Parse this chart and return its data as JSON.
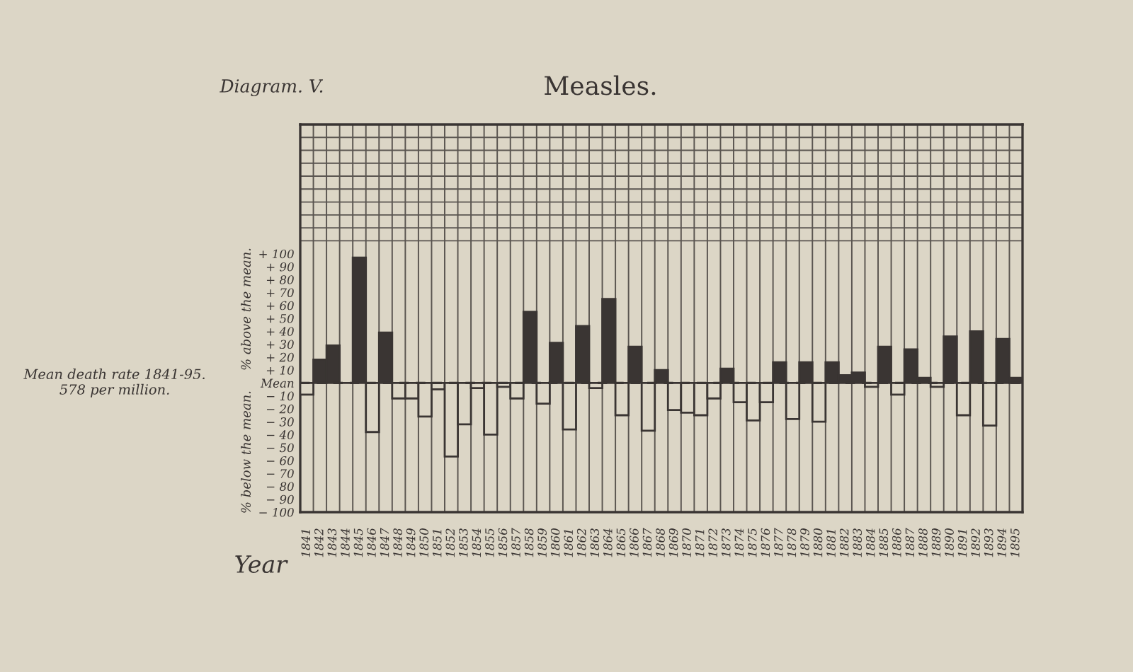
{
  "chart_data": {
    "type": "bar",
    "title": "Measles.",
    "xlabel": "Year",
    "annotations": [
      "Diagram. V.",
      "% above the mean.",
      "% below the mean."
    ],
    "categories": [
      "1841",
      "1842",
      "1843",
      "1844",
      "1845",
      "1846",
      "1847",
      "1848",
      "1849",
      "1850",
      "1851",
      "1852",
      "1853",
      "1854",
      "1855",
      "1856",
      "1857",
      "1858",
      "1859",
      "1860",
      "1861",
      "1862",
      "1863",
      "1864",
      "1865",
      "1866",
      "1867",
      "1868",
      "1869",
      "1870",
      "1871",
      "1872",
      "1873",
      "1874",
      "1875",
      "1876",
      "1877",
      "1878",
      "1879",
      "1880",
      "1881",
      "1882",
      "1883",
      "1884",
      "1885",
      "1886",
      "1887",
      "1888",
      "1889",
      "1890",
      "1891",
      "1892",
      "1893",
      "1894",
      "1895"
    ],
    "values": [
      -9,
      18,
      29,
      0,
      97,
      -38,
      39,
      -12,
      -12,
      -26,
      -5,
      -57,
      -32,
      -4,
      -40,
      -3,
      -12,
      55,
      -16,
      31,
      -36,
      44,
      -4,
      65,
      -25,
      28,
      -37,
      10,
      -21,
      -23,
      -25,
      -12,
      11,
      -15,
      -29,
      -15,
      16,
      -28,
      16,
      -30,
      16,
      6,
      8,
      -3,
      28,
      -9,
      26,
      4,
      -3,
      36,
      -25,
      40,
      -33,
      34,
      4
    ],
    "colors": [
      "#dcd6c6",
      "#3a3533",
      "#3a3533",
      "#3a3533",
      "#3a3533",
      "#dcd6c6",
      "#3a3533",
      "#dcd6c6",
      "#dcd6c6",
      "#dcd6c6",
      "#dcd6c6",
      "#dcd6c6",
      "#dcd6c6",
      "#dcd6c6",
      "#dcd6c6",
      "#dcd6c6",
      "#dcd6c6",
      "#3a3533",
      "#dcd6c6",
      "#3a3533",
      "#dcd6c6",
      "#3a3533",
      "#dcd6c6",
      "#3a3533",
      "#dcd6c6",
      "#3a3533",
      "#dcd6c6",
      "#3a3533",
      "#dcd6c6",
      "#dcd6c6",
      "#dcd6c6",
      "#dcd6c6",
      "#3a3533",
      "#dcd6c6",
      "#dcd6c6",
      "#dcd6c6",
      "#3a3533",
      "#dcd6c6",
      "#3a3533",
      "#dcd6c6",
      "#3a3533",
      "#3a3533",
      "#3a3533",
      "#dcd6c6",
      "#3a3533",
      "#dcd6c6",
      "#3a3533",
      "#3a3533",
      "#dcd6c6",
      "#3a3533",
      "#dcd6c6",
      "#3a3533",
      "#dcd6c6",
      "#3a3533",
      "#3a3533"
    ],
    "ylim": [
      -100,
      200
    ],
    "yticks": [
      {
        "value": -100,
        "label": "− 100"
      },
      {
        "value": -90,
        "label": "− 90"
      },
      {
        "value": -80,
        "label": "− 80"
      },
      {
        "value": -70,
        "label": "− 70"
      },
      {
        "value": -60,
        "label": "− 60"
      },
      {
        "value": -50,
        "label": "− 50"
      },
      {
        "value": -40,
        "label": "− 40"
      },
      {
        "value": -30,
        "label": "− 30"
      },
      {
        "value": -20,
        "label": "− 20"
      },
      {
        "value": -10,
        "label": "− 10"
      },
      {
        "value": 0,
        "label": "Mean"
      },
      {
        "value": 10,
        "label": "+ 10"
      },
      {
        "value": 20,
        "label": "+ 20"
      },
      {
        "value": 30,
        "label": "+ 30"
      },
      {
        "value": 40,
        "label": "+ 40"
      },
      {
        "value": 50,
        "label": "+ 50"
      },
      {
        "value": 60,
        "label": "+ 60"
      },
      {
        "value": 70,
        "label": "+ 70"
      },
      {
        "value": 80,
        "label": "+ 80"
      },
      {
        "value": 90,
        "label": "+ 90"
      },
      {
        "value": 100,
        "label": "+ 100"
      }
    ],
    "ref_lines": [
      {
        "axis": "y",
        "value": 0,
        "label": "Mean death rate 1841-95.\n578 per million.",
        "line_style": "dashed",
        "color": "#3a3533"
      }
    ],
    "grid": true
  }
}
